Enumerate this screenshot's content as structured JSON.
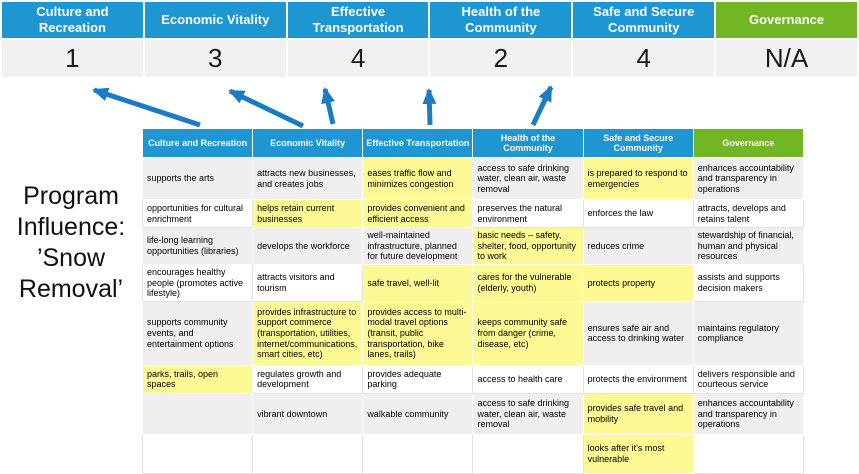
{
  "program_label": "Program Influence: ’Snow Removal’",
  "colors": {
    "blue": "#1E96D2",
    "green": "#72B626",
    "highlight": "#FDFA96",
    "band": "#EFEFEF",
    "arrow": "#1B7CC2"
  },
  "scorecard": {
    "columns": [
      {
        "label": "Culture and Recreation",
        "score": "1",
        "theme": "blue"
      },
      {
        "label": "Economic Vitality",
        "score": "3",
        "theme": "blue"
      },
      {
        "label": "Effective Transportation",
        "score": "4",
        "theme": "blue"
      },
      {
        "label": "Health of the Community",
        "score": "2",
        "theme": "blue"
      },
      {
        "label": "Safe and Secure Community",
        "score": "4",
        "theme": "blue"
      },
      {
        "label": "Governance",
        "score": "N/A",
        "theme": "green"
      }
    ]
  },
  "matrix": {
    "headers": [
      {
        "label": "Culture and Recreation",
        "theme": "blue"
      },
      {
        "label": "Economic Vitality",
        "theme": "blue"
      },
      {
        "label": "Effective Transportation",
        "theme": "blue"
      },
      {
        "label": "Health of the Community",
        "theme": "blue"
      },
      {
        "label": "Safe and Secure Community",
        "theme": "blue"
      },
      {
        "label": "Governance",
        "theme": "green"
      }
    ],
    "rows": [
      [
        {
          "t": "supports the arts",
          "h": false
        },
        {
          "t": "attracts new businesses, and creates jobs",
          "h": false
        },
        {
          "t": "eases traffic flow and minimizes congestion",
          "h": true
        },
        {
          "t": "access to safe drinking water, clean air, waste removal",
          "h": false
        },
        {
          "t": "is prepared to respond to emergencies",
          "h": true
        },
        {
          "t": "enhances accountability and transparency in operations",
          "h": false
        }
      ],
      [
        {
          "t": "opportunities for cultural enrichment",
          "h": false
        },
        {
          "t": "helps retain current businesses",
          "h": true
        },
        {
          "t": "provides convenient and efficient access",
          "h": true
        },
        {
          "t": "preserves the natural environment",
          "h": false
        },
        {
          "t": "enforces the law",
          "h": false
        },
        {
          "t": "attracts, develops and retains talent",
          "h": false
        }
      ],
      [
        {
          "t": "life-long learning opportunities (libraries)",
          "h": false
        },
        {
          "t": "develops the workforce",
          "h": false
        },
        {
          "t": "well-maintained infrastructure, planned for future development",
          "h": false
        },
        {
          "t": "basic needs – safety, shelter, food, opportunity to work",
          "h": true
        },
        {
          "t": "reduces crime",
          "h": false
        },
        {
          "t": "stewardship of financial, human and physical resources",
          "h": false
        }
      ],
      [
        {
          "t": "encourages healthy people (promotes active lifestyle)",
          "h": false
        },
        {
          "t": "attracts visitors and tourism",
          "h": false
        },
        {
          "t": "safe travel, well-lit",
          "h": true
        },
        {
          "t": "cares for the vulnerable (elderly, youth)",
          "h": true
        },
        {
          "t": "protects property",
          "h": true
        },
        {
          "t": "assists and supports decision makers",
          "h": false
        }
      ],
      [
        {
          "t": "supports community events, and entertainment options",
          "h": false
        },
        {
          "t": "provides infrastructure to support commerce (transportation, utilities, internet/communications, smart cities, etc)",
          "h": true
        },
        {
          "t": "provides access to multi-modal travel options (transit, public transportation, bike lanes, trails)",
          "h": true
        },
        {
          "t": "keeps community safe from danger (crime, disease, etc)",
          "h": true
        },
        {
          "t": "ensures safe air and access to drinking water",
          "h": false
        },
        {
          "t": "maintains regulatory compliance",
          "h": false
        }
      ],
      [
        {
          "t": "parks, trails, open spaces",
          "h": true
        },
        {
          "t": "regulates growth and development",
          "h": false
        },
        {
          "t": "provides adequate parking",
          "h": false
        },
        {
          "t": "access to health care",
          "h": false
        },
        {
          "t": "protects the environment",
          "h": false
        },
        {
          "t": "delivers responsible and courteous service",
          "h": false
        }
      ],
      [
        {
          "t": "",
          "h": false
        },
        {
          "t": "vibrant downtown",
          "h": false
        },
        {
          "t": "walkable community",
          "h": false
        },
        {
          "t": "access to safe drinking water, clean air, waste removal",
          "h": false
        },
        {
          "t": "provides safe travel and mobility",
          "h": true
        },
        {
          "t": "enhances accountability and transparency in operations",
          "h": false
        }
      ],
      [
        {
          "t": "",
          "h": false
        },
        {
          "t": "",
          "h": false
        },
        {
          "t": "",
          "h": false
        },
        {
          "t": "",
          "h": false
        },
        {
          "t": "looks after it's most vulnerable",
          "h": true
        },
        {
          "t": "",
          "h": false
        }
      ]
    ]
  }
}
